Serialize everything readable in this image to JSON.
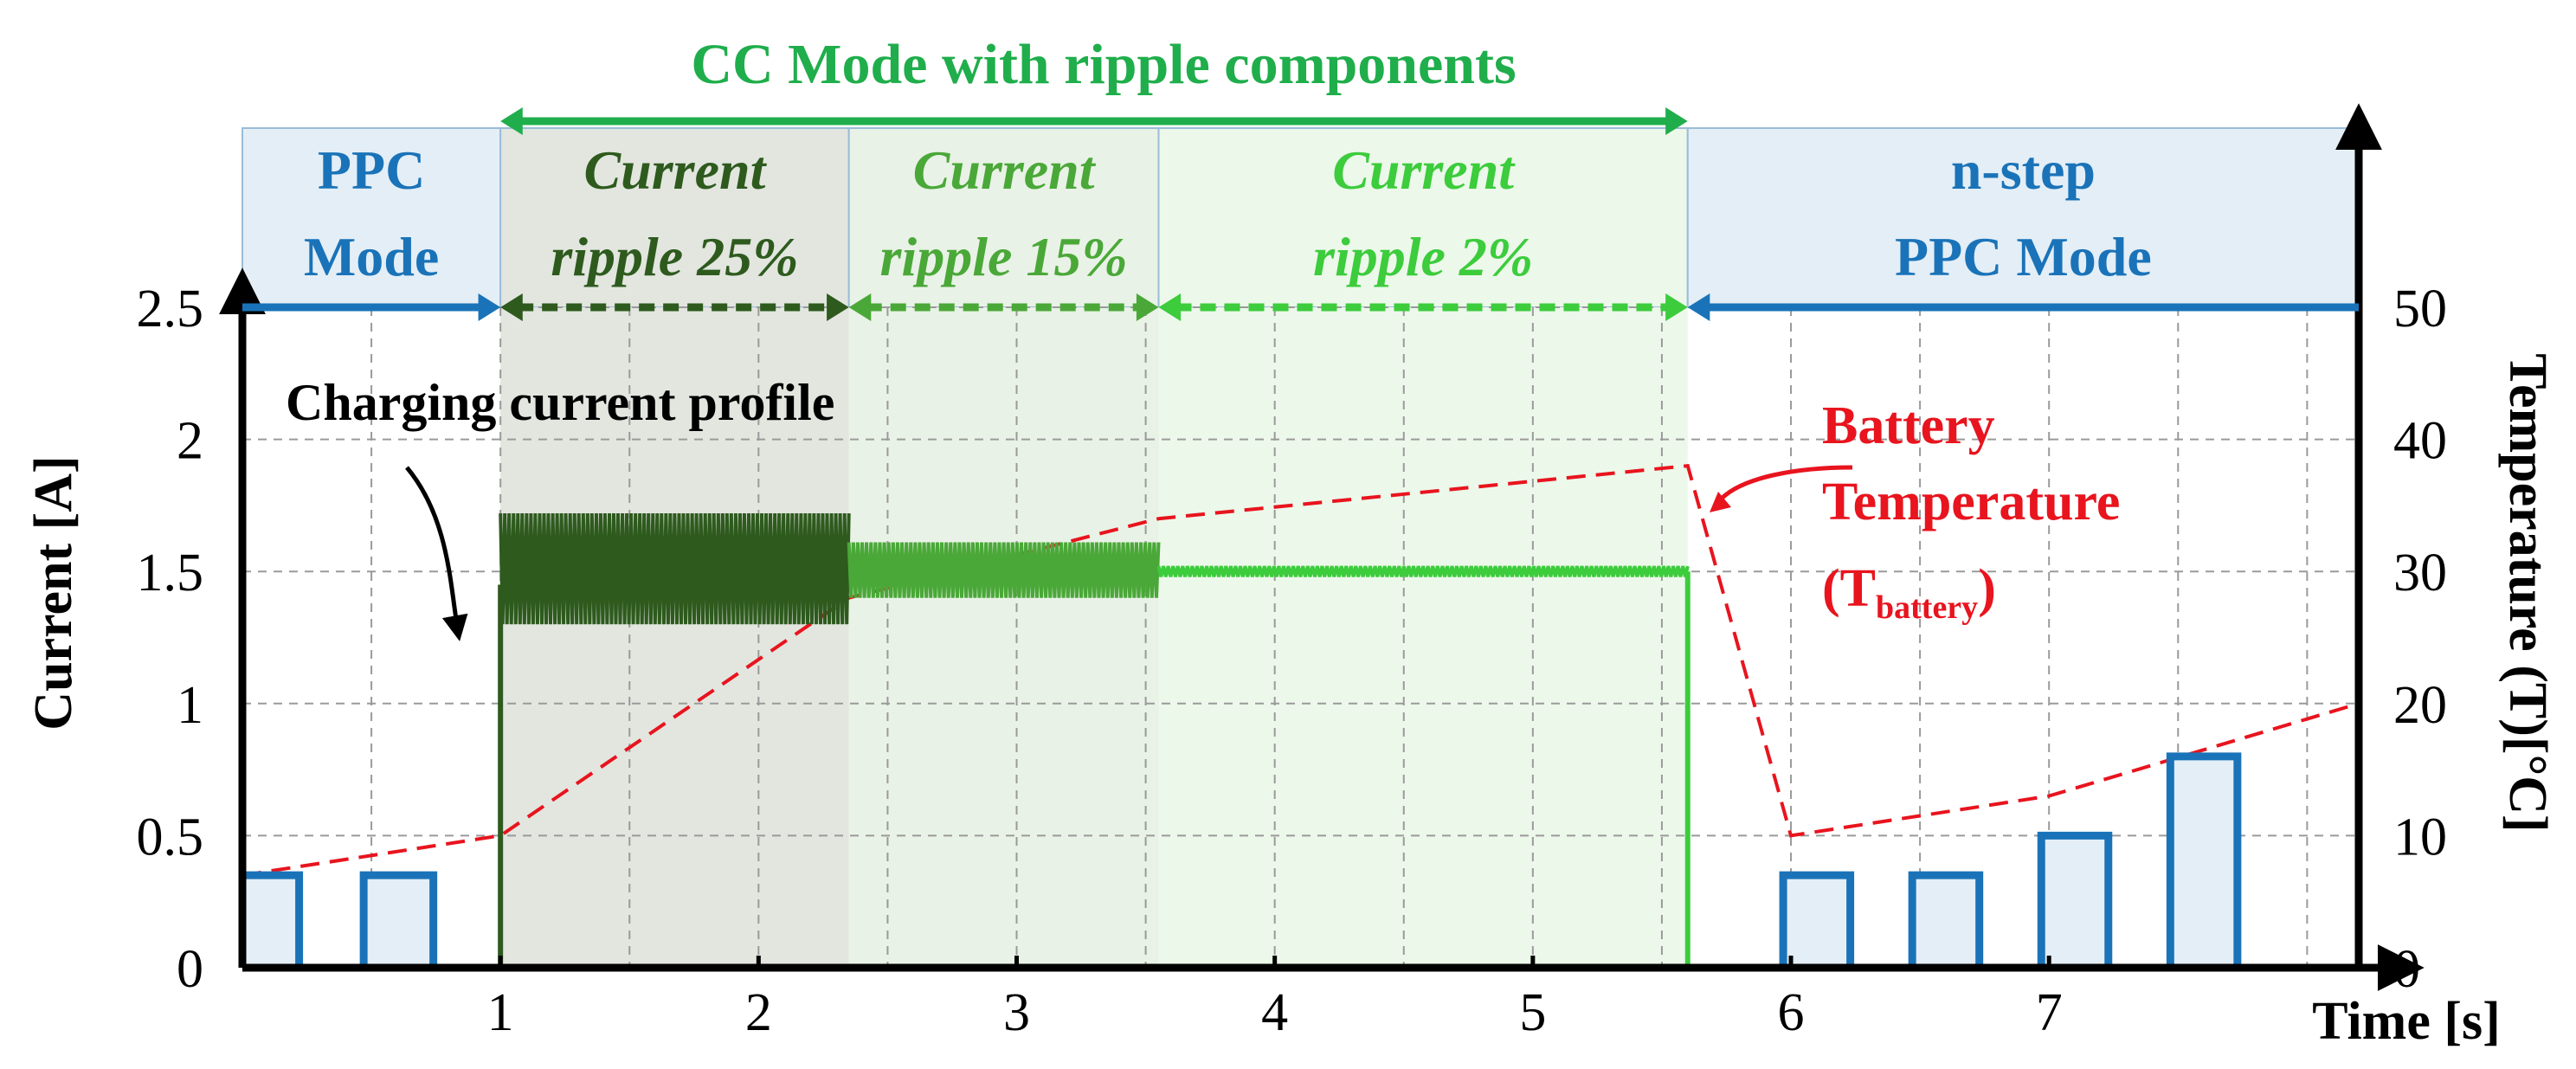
{
  "chart_data": {
    "type": "line",
    "title": "",
    "xlabel": "Time [s]",
    "ylabel_left": "Current [A]",
    "ylabel_right": "Temperature (T)[°C]",
    "xlim": [
      0,
      8.2
    ],
    "ylim_left": [
      0,
      2.5
    ],
    "ylim_right": [
      0,
      50
    ],
    "x_ticks": [
      "1",
      "2",
      "3",
      "4",
      "5",
      "6",
      "7"
    ],
    "x_tick_values": [
      1,
      2,
      3,
      4,
      5,
      6,
      7
    ],
    "y_left_ticks": [
      "0",
      "0.5",
      "1",
      "1.5",
      "2",
      "2.5"
    ],
    "y_left_tick_values": [
      0,
      0.5,
      1,
      1.5,
      2,
      2.5
    ],
    "y_right_ticks": [
      "0",
      "10",
      "20",
      "30",
      "40",
      "50"
    ],
    "y_right_tick_values": [
      0,
      10,
      20,
      30,
      40,
      50
    ],
    "grid": true,
    "colors": {
      "blue": "#1a73b8",
      "dark_green": "#2e5a1e",
      "mid_green": "#4aa838",
      "light_green": "#3ccc3c",
      "header_green": "#1fae4b",
      "red": "#e8141e",
      "blue_fill": "#e4eef6",
      "dark_green_fill": "#e2e6df",
      "mid_green_fill": "#e9f2e6",
      "light_green_fill": "#ecf8ea"
    },
    "modes": [
      {
        "name": "ppc",
        "label_line1": "PPC",
        "label_line2": "Mode",
        "x_start": 0,
        "x_end": 1,
        "color": "#1a73b8",
        "fill": "#e4eef6"
      },
      {
        "name": "ripple25",
        "label_line1": "Current",
        "label_line2": "ripple 25%",
        "x_start": 1,
        "x_end": 2.35,
        "color": "#2e5a1e",
        "fill": "#e2e6df"
      },
      {
        "name": "ripple15",
        "label_line1": "Current",
        "label_line2": "ripple 15%",
        "x_start": 2.35,
        "x_end": 3.55,
        "color": "#4aa838",
        "fill": "#e9f2e6"
      },
      {
        "name": "ripple2",
        "label_line1": "Current",
        "label_line2": "ripple 2%",
        "x_start": 3.55,
        "x_end": 5.6,
        "color": "#3ccc3c",
        "fill": "#ecf8ea"
      },
      {
        "name": "nstep",
        "label_line1": "n-step",
        "label_line2": "PPC Mode",
        "x_start": 5.6,
        "x_end": 8.2,
        "color": "#1a73b8",
        "fill": "#e4eef6"
      }
    ],
    "cc_mode_label": "CC Mode with ripple components",
    "cc_mode_range": [
      1,
      5.6
    ],
    "series": [
      {
        "name": "Charging current profile",
        "kind": "current",
        "ppc_pulses": [
          {
            "x_start": 0,
            "x_end": 0.22,
            "amplitude": 0.35
          },
          {
            "x_start": 0.47,
            "x_end": 0.74,
            "amplitude": 0.35
          }
        ],
        "ripple_segments": [
          {
            "x_start": 1,
            "x_end": 2.35,
            "mean": 1.5,
            "min": 1.3,
            "max": 1.72,
            "cycles": 80
          },
          {
            "x_start": 2.35,
            "x_end": 3.55,
            "mean": 1.5,
            "min": 1.4,
            "max": 1.61,
            "cycles": 70
          },
          {
            "x_start": 3.55,
            "x_end": 5.6,
            "mean": 1.5,
            "min": 1.48,
            "max": 1.52,
            "cycles": 110
          }
        ],
        "nstep_pulses": [
          {
            "x_start": 5.97,
            "x_end": 6.23,
            "amplitude": 0.35
          },
          {
            "x_start": 6.47,
            "x_end": 6.73,
            "amplitude": 0.35
          },
          {
            "x_start": 6.97,
            "x_end": 7.23,
            "amplitude": 0.5
          },
          {
            "x_start": 7.47,
            "x_end": 7.73,
            "amplitude": 0.8
          }
        ]
      },
      {
        "name": "Battery Temperature",
        "kind": "temperature",
        "x": [
          0,
          1,
          2.35,
          3.55,
          5.6,
          6.0,
          7.0,
          8.2
        ],
        "y": [
          7,
          10,
          28,
          34,
          38,
          10,
          13,
          20
        ]
      }
    ],
    "annotations": {
      "current_label": "Charging current profile",
      "temp_label_line1": "Battery",
      "temp_label_line2": "Temperature",
      "temp_label_open": "(T",
      "temp_label_sub": "battery",
      "temp_label_close": ")"
    }
  }
}
